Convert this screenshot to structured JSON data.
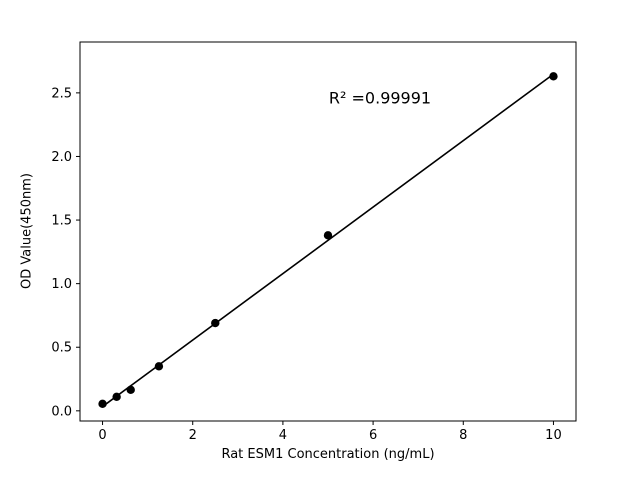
{
  "figure": {
    "background": "#ffffff"
  },
  "chart_data": {
    "type": "scatter",
    "title": "",
    "xlabel": "Rat ESM1 Concentration (ng/mL)",
    "ylabel": "OD Value(450nm)",
    "x": [
      0,
      0.3125,
      0.625,
      1.25,
      2.5,
      5,
      10
    ],
    "y": [
      0.055,
      0.11,
      0.165,
      0.35,
      0.69,
      1.38,
      2.63
    ],
    "xlim": [
      -0.5,
      10.5
    ],
    "ylim": [
      -0.08,
      2.9
    ],
    "x_ticks": [
      0,
      2,
      4,
      6,
      8,
      10
    ],
    "x_tick_labels": [
      "0",
      "2",
      "4",
      "6",
      "8",
      "10"
    ],
    "y_ticks": [
      0.0,
      0.5,
      1.0,
      1.5,
      2.0,
      2.5
    ],
    "y_tick_labels": [
      "0.0",
      "0.5",
      "1.0",
      "1.5",
      "2.0",
      "2.5"
    ],
    "annotation": {
      "text": "R² =0.99991",
      "x": 6.1,
      "y": 2.42
    },
    "r_squared": 0.99991,
    "fit": "linear",
    "grid": false,
    "legend": null,
    "marker_color": "#000000",
    "line_color": "#000000",
    "axis_color": "#000000"
  }
}
